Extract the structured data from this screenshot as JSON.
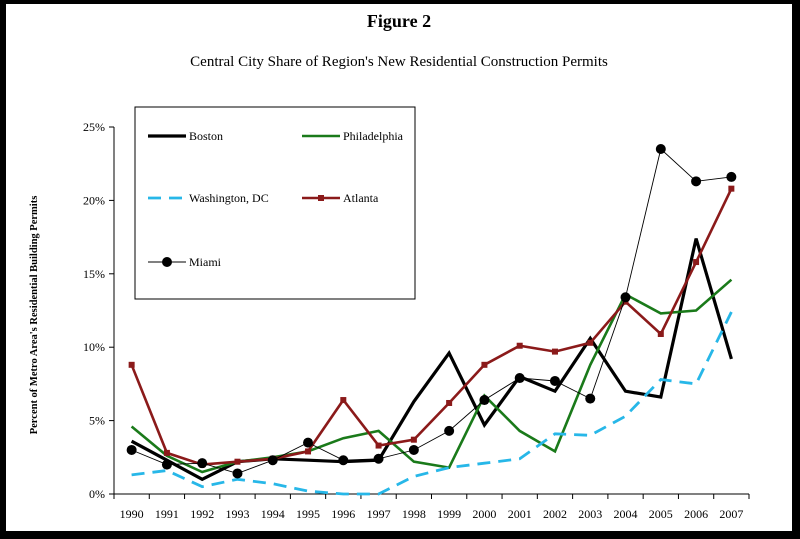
{
  "chart_data": {
    "type": "line",
    "figure_label": "Figure 2",
    "title": "Central City Share of Region's New Residential Construction Permits",
    "xlabel": "",
    "ylabel": "Percent of Metro Area's Residential Building Permits",
    "ylim": [
      0,
      25
    ],
    "yticks": [
      0,
      5,
      10,
      15,
      20,
      25
    ],
    "ytick_labels": [
      "0%",
      "5%",
      "10%",
      "15%",
      "20%",
      "25%"
    ],
    "categories": [
      "1990",
      "1991",
      "1992",
      "1993",
      "1994",
      "1995",
      "1996",
      "1997",
      "1998",
      "1999",
      "2000",
      "2001",
      "2002",
      "2003",
      "2004",
      "2005",
      "2006",
      "2007"
    ],
    "legend_position": "top-left",
    "series": [
      {
        "name": "Boston",
        "color": "#000000",
        "style": "thick",
        "marker": "none",
        "values": [
          3.6,
          2.3,
          1.0,
          2.2,
          2.4,
          2.3,
          2.2,
          2.3,
          6.3,
          9.6,
          4.7,
          8.0,
          7.0,
          10.6,
          7.0,
          6.6,
          17.4,
          9.2
        ]
      },
      {
        "name": "Philadelphia",
        "color": "#1a7a1a",
        "style": "medium",
        "marker": "none",
        "values": [
          4.6,
          2.6,
          1.5,
          2.2,
          2.5,
          2.9,
          3.8,
          4.3,
          2.2,
          1.8,
          6.7,
          4.3,
          2.9,
          8.8,
          13.6,
          12.3,
          12.5,
          14.6
        ]
      },
      {
        "name": "Washington, DC",
        "color": "#27b7e8",
        "style": "dashed",
        "marker": "none",
        "values": [
          1.3,
          1.6,
          0.5,
          1.0,
          0.7,
          0.2,
          0.0,
          0.0,
          1.2,
          1.8,
          2.1,
          2.4,
          4.1,
          4.0,
          5.3,
          7.8,
          7.5,
          12.4
        ]
      },
      {
        "name": "Atlanta",
        "color": "#8b1a1a",
        "style": "medium",
        "marker": "square",
        "values": [
          8.8,
          2.8,
          2.0,
          2.2,
          2.4,
          2.9,
          6.4,
          3.3,
          3.7,
          6.2,
          8.8,
          10.1,
          9.7,
          10.3,
          13.1,
          10.9,
          15.8,
          20.8
        ]
      },
      {
        "name": "Miami",
        "color": "#000000",
        "style": "thin",
        "marker": "circle",
        "values": [
          3.0,
          2.0,
          2.1,
          1.4,
          2.3,
          3.5,
          2.3,
          2.4,
          3.0,
          4.3,
          6.4,
          7.9,
          7.7,
          6.5,
          13.4,
          23.5,
          21.3,
          21.6
        ]
      }
    ]
  }
}
